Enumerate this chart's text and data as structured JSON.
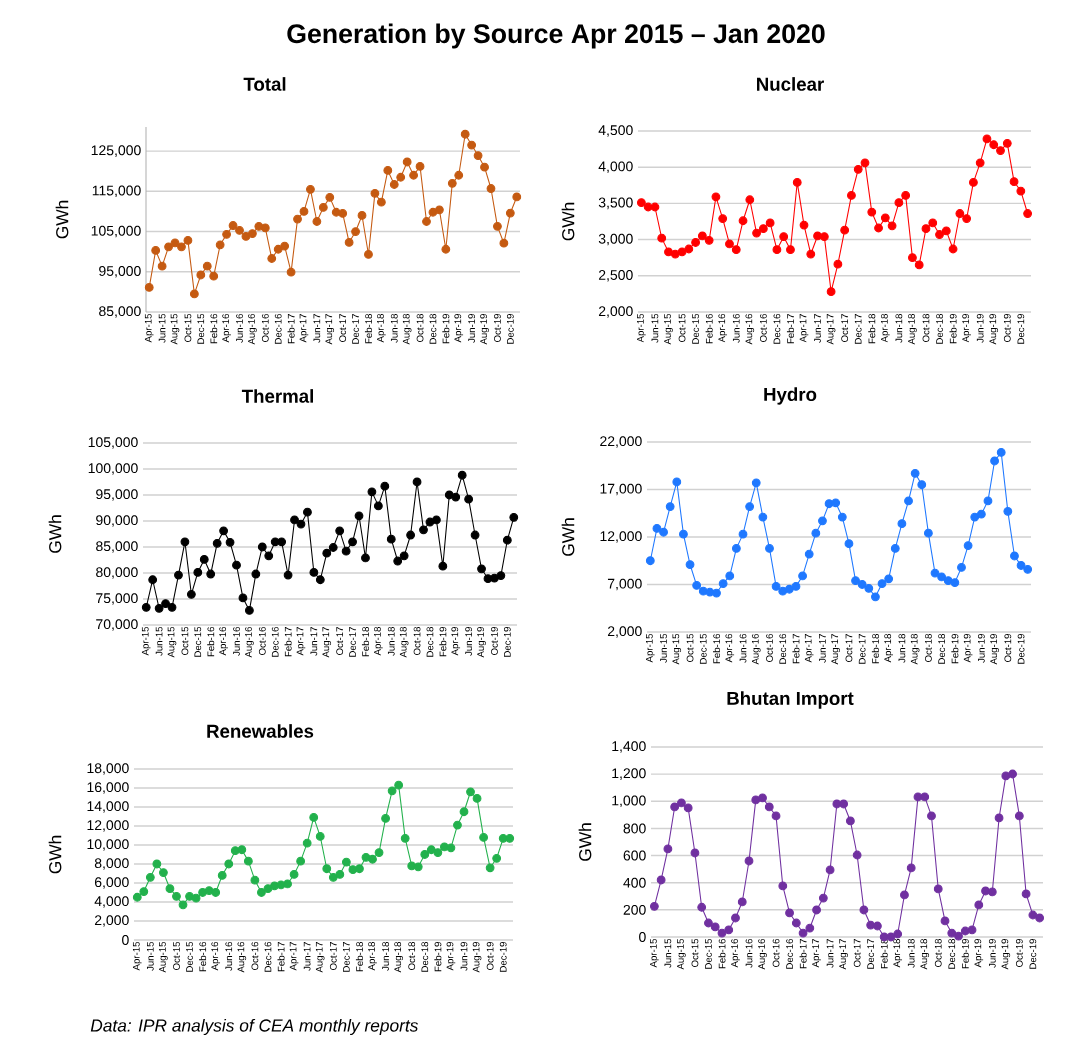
{
  "chart_data": [
    {
      "type": "line",
      "title": "Total",
      "ylabel": "GWh",
      "annotations": [
        "Generation by Source Apr 2015 – Jan 2020"
      ],
      "color": "#c55a11",
      "marker": "circle",
      "grid": "y",
      "categories": [
        "Apr-15",
        null,
        "Jun-15",
        null,
        "Aug-15",
        null,
        "Oct-15",
        null,
        "Dec-15",
        null,
        "Feb-16",
        null,
        "Apr-16",
        null,
        "Jun-16",
        null,
        "Aug-16",
        null,
        "Oct-16",
        null,
        "Dec-16",
        null,
        "Feb-17",
        null,
        "Apr-17",
        null,
        "Jun-17",
        null,
        "Aug-17",
        null,
        "Oct-17",
        null,
        "Dec-17",
        null,
        "Feb-18",
        null,
        "Apr-18",
        null,
        "Jun-18",
        null,
        "Aug-18",
        null,
        "Oct-18",
        null,
        "Dec-18",
        null,
        "Feb-19",
        null,
        "Apr-19",
        null,
        "Jun-19",
        null,
        "Aug-19",
        null,
        "Oct-19",
        null,
        "Dec-19",
        null
      ],
      "values": [
        91100,
        100300,
        96400,
        101200,
        102200,
        101200,
        102800,
        89500,
        94200,
        96400,
        93900,
        101700,
        104300,
        106500,
        105300,
        103800,
        104500,
        106300,
        105900,
        98300,
        100600,
        101400,
        94900,
        108100,
        110000,
        115500,
        107500,
        111000,
        113500,
        109800,
        109500,
        102300,
        105000,
        109000,
        99300,
        114500,
        112300,
        120200,
        116700,
        118500,
        122300,
        119000,
        121200,
        107500,
        109800,
        110400,
        100600,
        117000,
        119000,
        129200,
        126500,
        123900,
        121000,
        115700,
        106300,
        102100,
        109600,
        113600
      ],
      "ylim": [
        85000,
        131000
      ],
      "yticks": [
        {
          "value": 85000,
          "label": "85,000"
        },
        {
          "value": 95000,
          "label": "95,000"
        },
        {
          "value": 105000,
          "label": "105,000"
        },
        {
          "value": 115000,
          "label": "115,000"
        },
        {
          "value": 125000,
          "label": "125,000"
        }
      ]
    },
    {
      "type": "line",
      "title": "Nuclear",
      "ylabel": "GWh",
      "color": "#ff0000",
      "marker": "circle",
      "grid": "y",
      "categories": [
        "Apr-15",
        null,
        "Jun-15",
        null,
        "Aug-15",
        null,
        "Oct-15",
        null,
        "Dec-15",
        null,
        "Feb-16",
        null,
        "Apr-16",
        null,
        "Jun-16",
        null,
        "Aug-16",
        null,
        "Oct-16",
        null,
        "Dec-16",
        null,
        "Feb-17",
        null,
        "Apr-17",
        null,
        "Jun-17",
        null,
        "Aug-17",
        null,
        "Oct-17",
        null,
        "Dec-17",
        null,
        "Feb-18",
        null,
        "Apr-18",
        null,
        "Jun-18",
        null,
        "Aug-18",
        null,
        "Oct-18",
        null,
        "Dec-18",
        null,
        "Feb-19",
        null,
        "Apr-19",
        null,
        "Jun-19",
        null,
        "Aug-19",
        null,
        "Oct-19",
        null,
        "Dec-19",
        null
      ],
      "values": [
        3510,
        3450,
        3450,
        3020,
        2830,
        2800,
        2830,
        2870,
        2960,
        3050,
        2990,
        3590,
        3290,
        2940,
        2860,
        3260,
        3550,
        3090,
        3150,
        3230,
        2860,
        3040,
        2860,
        3790,
        3200,
        2800,
        3050,
        3040,
        2280,
        2660,
        3130,
        3610,
        3970,
        4060,
        3380,
        3160,
        3300,
        3190,
        3510,
        3610,
        2750,
        2650,
        3150,
        3230,
        3070,
        3120,
        2870,
        3360,
        3290,
        3790,
        4060,
        4390,
        4310,
        4230,
        4330,
        3800,
        3670,
        3360
      ],
      "ylim": [
        2000,
        4500
      ],
      "yticks": [
        {
          "value": 2000,
          "label": "2,000"
        },
        {
          "value": 2500,
          "label": "2,500"
        },
        {
          "value": 3000,
          "label": "3,000"
        },
        {
          "value": 3500,
          "label": "3,500"
        },
        {
          "value": 4000,
          "label": "4,000"
        },
        {
          "value": 4500,
          "label": "4,500"
        }
      ]
    },
    {
      "type": "line",
      "title": "Thermal",
      "ylabel": "GWh",
      "color": "#000000",
      "marker": "circle",
      "grid": "y",
      "categories": [
        "Apr-15",
        null,
        "Jun-15",
        null,
        "Aug-15",
        null,
        "Oct-15",
        null,
        "Dec-15",
        null,
        "Feb-16",
        null,
        "Apr-16",
        null,
        "Jun-16",
        null,
        "Aug-16",
        null,
        "Oct-16",
        null,
        "Dec-16",
        null,
        "Feb-17",
        null,
        "Apr-17",
        null,
        "Jun-17",
        null,
        "Aug-17",
        null,
        "Oct-17",
        null,
        "Dec-17",
        null,
        "Feb-18",
        null,
        "Apr-18",
        null,
        "Jun-18",
        null,
        "Aug-18",
        null,
        "Oct-18",
        null,
        "Dec-18",
        null,
        "Feb-19",
        null,
        "Apr-19",
        null,
        "Jun-19",
        null,
        "Aug-19",
        null,
        "Oct-19",
        null,
        "Dec-19",
        null
      ],
      "values": [
        73400,
        78700,
        73200,
        74100,
        73400,
        79600,
        86000,
        75900,
        80100,
        82600,
        79800,
        85700,
        88100,
        85900,
        81500,
        75200,
        72800,
        79800,
        85000,
        83300,
        86000,
        86000,
        79600,
        90200,
        89400,
        91700,
        80100,
        78700,
        83800,
        84900,
        88100,
        84200,
        86000,
        91000,
        82900,
        95600,
        92900,
        96700,
        86500,
        82300,
        83300,
        87300,
        97500,
        88300,
        89800,
        90200,
        81300,
        95000,
        94600,
        98800,
        94200,
        87300,
        80800,
        78900,
        79000,
        79500,
        86300,
        90700
      ],
      "ylim": [
        70000,
        105000
      ],
      "yticks": [
        {
          "value": 70000,
          "label": "70,000"
        },
        {
          "value": 75000,
          "label": "75,000"
        },
        {
          "value": 80000,
          "label": "80,000"
        },
        {
          "value": 85000,
          "label": "85,000"
        },
        {
          "value": 90000,
          "label": "90,000"
        },
        {
          "value": 95000,
          "label": "95,000"
        },
        {
          "value": 100000,
          "label": "100,000"
        },
        {
          "value": 105000,
          "label": "105,000"
        }
      ]
    },
    {
      "type": "line",
      "title": "Hydro",
      "ylabel": "GWh",
      "color": "#1f78ff",
      "marker": "circle",
      "grid": "y",
      "categories": [
        "Apr-15",
        null,
        "Jun-15",
        null,
        "Aug-15",
        null,
        "Oct-15",
        null,
        "Dec-15",
        null,
        "Feb-16",
        null,
        "Apr-16",
        null,
        "Jun-16",
        null,
        "Aug-16",
        null,
        "Oct-16",
        null,
        "Dec-16",
        null,
        "Feb-17",
        null,
        "Apr-17",
        null,
        "Jun-17",
        null,
        "Aug-17",
        null,
        "Oct-17",
        null,
        "Dec-17",
        null,
        "Feb-18",
        null,
        "Apr-18",
        null,
        "Jun-18",
        null,
        "Aug-18",
        null,
        "Oct-18",
        null,
        "Dec-18",
        null,
        "Feb-19",
        null,
        "Apr-19",
        null,
        "Jun-19",
        null,
        "Aug-19",
        null,
        "Oct-19",
        null,
        "Dec-19",
        null
      ],
      "values": [
        9500,
        12900,
        12500,
        15200,
        17800,
        12300,
        9100,
        6900,
        6300,
        6200,
        6100,
        7100,
        7900,
        10800,
        12300,
        15200,
        17700,
        14100,
        10800,
        6800,
        6300,
        6500,
        6800,
        7900,
        10200,
        12400,
        13700,
        15500,
        15600,
        14100,
        11300,
        7400,
        7000,
        6600,
        5700,
        7100,
        7600,
        10800,
        13400,
        15800,
        18700,
        17500,
        12400,
        8200,
        7800,
        7400,
        7200,
        8800,
        11100,
        14100,
        14400,
        15800,
        20000,
        20900,
        14700,
        10000,
        9000,
        8600
      ],
      "ylim": [
        2000,
        22000
      ],
      "yticks": [
        {
          "value": 2000,
          "label": "2,000"
        },
        {
          "value": 7000,
          "label": "7,000"
        },
        {
          "value": 12000,
          "label": "12,000"
        },
        {
          "value": 17000,
          "label": "17,000"
        },
        {
          "value": 22000,
          "label": "22,000"
        }
      ]
    },
    {
      "type": "line",
      "title": "Renewables",
      "ylabel": "GWh",
      "annotations": [
        "Data: IPR analysis of CEA monthly reports"
      ],
      "color": "#22b14c",
      "marker": "circle",
      "grid": "y",
      "categories": [
        "Apr-15",
        null,
        "Jun-15",
        null,
        "Aug-15",
        null,
        "Oct-15",
        null,
        "Dec-15",
        null,
        "Feb-16",
        null,
        "Apr-16",
        null,
        "Jun-16",
        null,
        "Aug-16",
        null,
        "Oct-16",
        null,
        "Dec-16",
        null,
        "Feb-17",
        null,
        "Apr-17",
        null,
        "Jun-17",
        null,
        "Aug-17",
        null,
        "Oct-17",
        null,
        "Dec-17",
        null,
        "Feb-18",
        null,
        "Apr-18",
        null,
        "Jun-18",
        null,
        "Aug-18",
        null,
        "Oct-18",
        null,
        "Dec-18",
        null,
        "Feb-19",
        null,
        "Apr-19",
        null,
        "Jun-19",
        null,
        "Aug-19",
        null,
        "Oct-19",
        null,
        "Dec-19",
        null
      ],
      "values": [
        4500,
        5100,
        6600,
        8000,
        7100,
        5400,
        4600,
        3700,
        4600,
        4400,
        5000,
        5200,
        5000,
        6800,
        8000,
        9400,
        9500,
        8300,
        6300,
        5000,
        5400,
        5700,
        5800,
        5900,
        6900,
        8300,
        10200,
        12900,
        10900,
        7500,
        6600,
        6900,
        8200,
        7400,
        7500,
        8700,
        8500,
        9200,
        12800,
        15700,
        16300,
        10700,
        7800,
        7700,
        9000,
        9500,
        9200,
        9800,
        9700,
        12100,
        13500,
        15600,
        14900,
        10800,
        7600,
        8600,
        10700,
        10700
      ],
      "ylim": [
        0,
        18000
      ],
      "yticks": [
        0,
        {
          "value": 2000,
          "label": "2,000"
        },
        {
          "value": 4000,
          "label": "4,000"
        },
        {
          "value": 6000,
          "label": "6,000"
        },
        {
          "value": 8000,
          "label": "8,000"
        },
        {
          "value": 10000,
          "label": "10,000"
        },
        {
          "value": 12000,
          "label": "12,000"
        },
        {
          "value": 14000,
          "label": "14,000"
        },
        {
          "value": 16000,
          "label": "16,000"
        },
        {
          "value": 18000,
          "label": "18,000"
        }
      ]
    },
    {
      "type": "line",
      "title": "Bhutan Import",
      "ylabel": "GWh",
      "color": "#7030a0",
      "marker": "circle",
      "grid": "y",
      "categories": [
        "Apr-15",
        null,
        "Jun-15",
        null,
        "Aug-15",
        null,
        "Oct-15",
        null,
        "Dec-15",
        null,
        "Feb-16",
        null,
        "Apr-16",
        null,
        "Jun-16",
        null,
        "Aug-16",
        null,
        "Oct-16",
        null,
        "Dec-16",
        null,
        "Feb-17",
        null,
        "Apr-17",
        null,
        "Jun-17",
        null,
        "Aug-17",
        null,
        "Oct-17",
        null,
        "Dec-17",
        null,
        "Feb-18",
        null,
        "Apr-18",
        null,
        "Jun-18",
        null,
        "Aug-18",
        null,
        "Oct-18",
        null,
        "Dec-18",
        null,
        "Feb-19",
        null,
        "Apr-19",
        null,
        "Jun-19",
        null,
        "Aug-19",
        null,
        "Oct-19",
        null,
        "Dec-19",
        null
      ],
      "values": [
        226,
        420,
        649,
        958,
        988,
        951,
        619,
        219,
        103,
        74,
        29,
        52,
        140,
        258,
        560,
        1010,
        1025,
        958,
        892,
        376,
        177,
        103,
        29,
        66,
        199,
        287,
        494,
        980,
        980,
        855,
        604,
        199,
        88,
        81,
        0,
        0,
        22,
        310,
        509,
        1032,
        1032,
        892,
        354,
        118,
        29,
        7,
        44,
        52,
        236,
        339,
        332,
        877,
        1187,
        1201,
        892,
        317,
        162,
        140
      ],
      "ylim": [
        0,
        1400
      ],
      "yticks": [
        0,
        200,
        400,
        600,
        800,
        {
          "value": 1000,
          "label": "1,000"
        },
        {
          "value": 1200,
          "label": "1,200"
        },
        {
          "value": 1400,
          "label": "1,400"
        }
      ]
    }
  ]
}
